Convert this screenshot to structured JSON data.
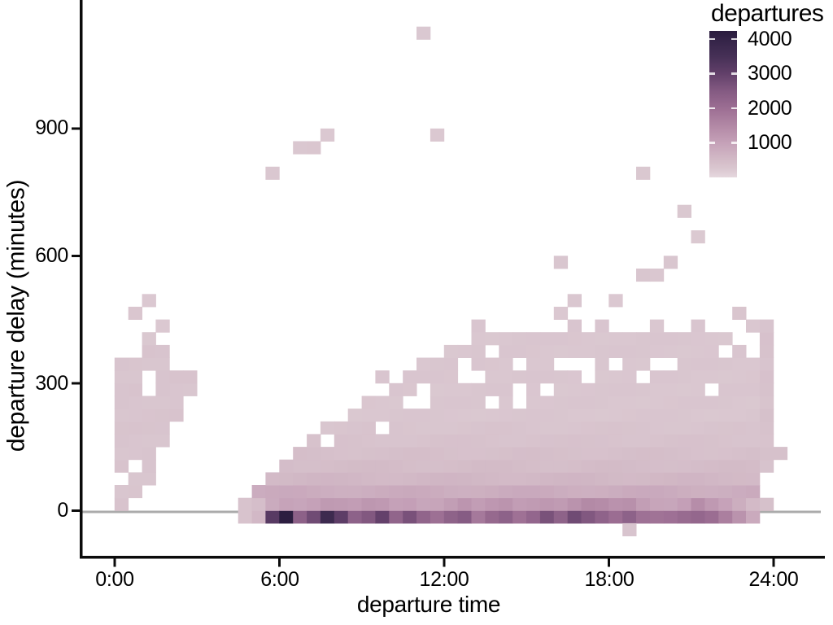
{
  "chart_data": {
    "type": "heatmap",
    "xlabel": "departure time",
    "ylabel": "departure delay (minutes)",
    "x_ticks": [
      {
        "value": 0,
        "label": "0:00"
      },
      {
        "value": 6,
        "label": "6:00"
      },
      {
        "value": 12,
        "label": "12:00"
      },
      {
        "value": 18,
        "label": "18:00"
      },
      {
        "value": 24,
        "label": "24:00"
      }
    ],
    "y_ticks": [
      {
        "value": 900,
        "label": "900"
      },
      {
        "value": 600,
        "label": "600"
      },
      {
        "value": 300,
        "label": "300"
      },
      {
        "value": 0,
        "label": "0"
      }
    ],
    "x_range_hours": [
      -1.3,
      25.9
    ],
    "y_range_minutes": [
      -110,
      1190
    ],
    "bin_width_hours": 0.5,
    "bin_height_minutes": 30,
    "grid": "off",
    "zero_line": {
      "value": 0,
      "color": "#ababab"
    },
    "legend": {
      "title": "departures",
      "position": "top-right",
      "max_value": 4235,
      "min_value": 0,
      "ticks": [
        {
          "value": 4000,
          "label": "4000"
        },
        {
          "value": 3000,
          "label": "3000"
        },
        {
          "value": 2000,
          "label": "2000"
        },
        {
          "value": 1000,
          "label": "1000"
        }
      ]
    },
    "color_scale": {
      "stops": [
        [
          0,
          "#e6d8de"
        ],
        [
          250,
          "#dac7d0"
        ],
        [
          500,
          "#d3bbc7"
        ],
        [
          1000,
          "#c5a1b8"
        ],
        [
          1500,
          "#b288a5"
        ],
        [
          2000,
          "#9c6e93"
        ],
        [
          2500,
          "#845a82"
        ],
        [
          3000,
          "#62406a"
        ],
        [
          3500,
          "#463056"
        ],
        [
          4000,
          "#332347"
        ],
        [
          4235,
          "#2a1c3e"
        ]
      ]
    },
    "columns_legend": "[hour_bin_start, top_delay_bin, count_delay_-30_0, count_delay_0_30]",
    "columns": [
      [
        4.5,
        0,
        350,
        300
      ],
      [
        5,
        30,
        600,
        400
      ],
      [
        5.5,
        60,
        3300,
        800
      ],
      [
        6,
        90,
        4250,
        1000
      ],
      [
        6.5,
        120,
        2300,
        1000
      ],
      [
        7,
        150,
        2700,
        1100
      ],
      [
        7.5,
        120,
        3600,
        1200
      ],
      [
        8,
        180,
        3000,
        1100
      ],
      [
        8.5,
        210,
        2300,
        1000
      ],
      [
        9,
        240,
        2600,
        1100
      ],
      [
        9.5,
        240,
        3100,
        1100
      ],
      [
        10,
        270,
        2300,
        1000
      ],
      [
        10.5,
        300,
        2700,
        1100
      ],
      [
        11,
        330,
        2200,
        1000
      ],
      [
        11.5,
        330,
        1900,
        1000
      ],
      [
        12,
        360,
        2200,
        1100
      ],
      [
        12.5,
        360,
        2400,
        1200
      ],
      [
        13,
        420,
        1800,
        1000
      ],
      [
        13.5,
        390,
        2200,
        1100
      ],
      [
        14,
        390,
        2400,
        1200
      ],
      [
        14.5,
        390,
        2000,
        1100
      ],
      [
        15,
        390,
        2200,
        1200
      ],
      [
        15.5,
        390,
        2600,
        1300
      ],
      [
        16,
        390,
        2200,
        1200
      ],
      [
        16.5,
        420,
        2700,
        1300
      ],
      [
        17,
        390,
        2500,
        1400
      ],
      [
        17.5,
        420,
        2300,
        1300
      ],
      [
        18,
        390,
        2100,
        1200
      ],
      [
        18.5,
        390,
        2400,
        1300
      ],
      [
        19,
        390,
        2000,
        1100
      ],
      [
        19.5,
        420,
        1900,
        1000
      ],
      [
        20,
        390,
        1900,
        1000
      ],
      [
        20.5,
        390,
        2000,
        1100
      ],
      [
        21,
        420,
        2100,
        1400
      ],
      [
        21.5,
        390,
        2000,
        1100
      ],
      [
        22,
        390,
        1700,
        900
      ],
      [
        22.5,
        360,
        1400,
        700
      ],
      [
        23,
        420,
        900,
        500
      ]
    ],
    "upper_row_counts": {
      "30": 780,
      "60": 560,
      "90": 460,
      "120": 400,
      "150": 340,
      "180": 300,
      "default": 265
    },
    "extra_tiles_legend": "[hour_bin_start, delay_bin_start, approx_count]",
    "extra_tiles": [
      [
        0,
        0,
        300
      ],
      [
        0,
        30,
        300
      ],
      [
        0,
        90,
        300
      ],
      [
        0,
        120,
        300
      ],
      [
        0,
        150,
        300
      ],
      [
        0,
        180,
        300
      ],
      [
        0,
        210,
        300
      ],
      [
        0,
        240,
        300
      ],
      [
        0,
        270,
        300
      ],
      [
        0,
        300,
        300
      ],
      [
        0,
        330,
        300
      ],
      [
        0.5,
        30,
        300
      ],
      [
        0.5,
        60,
        300
      ],
      [
        0.5,
        120,
        300
      ],
      [
        0.5,
        150,
        300
      ],
      [
        0.5,
        180,
        300
      ],
      [
        0.5,
        210,
        300
      ],
      [
        0.5,
        240,
        300
      ],
      [
        0.5,
        270,
        300
      ],
      [
        0.5,
        300,
        300
      ],
      [
        0.5,
        330,
        300
      ],
      [
        0.5,
        450,
        250
      ],
      [
        1,
        60,
        300
      ],
      [
        1,
        90,
        300
      ],
      [
        1,
        120,
        300
      ],
      [
        1,
        150,
        300
      ],
      [
        1,
        180,
        300
      ],
      [
        1,
        210,
        300
      ],
      [
        1,
        240,
        300
      ],
      [
        1,
        330,
        300
      ],
      [
        1,
        360,
        300
      ],
      [
        1,
        390,
        250
      ],
      [
        1,
        480,
        250
      ],
      [
        1.5,
        150,
        300
      ],
      [
        1.5,
        180,
        300
      ],
      [
        1.5,
        210,
        300
      ],
      [
        1.5,
        240,
        300
      ],
      [
        1.5,
        270,
        300
      ],
      [
        1.5,
        300,
        300
      ],
      [
        1.5,
        330,
        300
      ],
      [
        1.5,
        360,
        300
      ],
      [
        1.5,
        420,
        250
      ],
      [
        2,
        210,
        300
      ],
      [
        2,
        240,
        300
      ],
      [
        2,
        270,
        300
      ],
      [
        2,
        300,
        300
      ],
      [
        2.5,
        270,
        300
      ],
      [
        2.5,
        300,
        300
      ],
      [
        5.5,
        780,
        250
      ],
      [
        6.5,
        840,
        250
      ],
      [
        7,
        840,
        250
      ],
      [
        7.5,
        870,
        250
      ],
      [
        11,
        1110,
        250
      ],
      [
        11.5,
        870,
        250
      ],
      [
        19,
        780,
        250
      ],
      [
        20.5,
        690,
        250
      ],
      [
        21,
        630,
        250
      ],
      [
        16,
        570,
        250
      ],
      [
        20,
        570,
        250
      ],
      [
        19,
        540,
        250
      ],
      [
        19.5,
        540,
        250
      ],
      [
        16.5,
        480,
        250
      ],
      [
        18,
        480,
        250
      ],
      [
        16,
        450,
        250
      ],
      [
        22.5,
        450,
        280
      ],
      [
        7.5,
        180,
        300
      ],
      [
        9.5,
        300,
        300
      ],
      [
        23.5,
        0,
        400
      ],
      [
        23.5,
        90,
        350
      ],
      [
        23.5,
        120,
        350
      ],
      [
        23.5,
        150,
        350
      ],
      [
        23.5,
        180,
        350
      ],
      [
        23.5,
        210,
        350
      ],
      [
        23.5,
        240,
        350
      ],
      [
        23.5,
        270,
        350
      ],
      [
        23.5,
        300,
        350
      ],
      [
        23.5,
        330,
        350
      ],
      [
        23.5,
        360,
        350
      ],
      [
        23.5,
        390,
        350
      ],
      [
        23.5,
        420,
        350
      ],
      [
        24,
        120,
        350
      ],
      [
        18.5,
        -60,
        300
      ]
    ],
    "holes": [
      [
        9.5,
        180
      ],
      [
        10.5,
        240
      ],
      [
        11,
        240
      ],
      [
        11,
        270
      ],
      [
        12.5,
        300
      ],
      [
        12.5,
        330
      ],
      [
        13,
        300
      ],
      [
        13.5,
        240
      ],
      [
        13.5,
        360
      ],
      [
        14.5,
        240
      ],
      [
        14.5,
        270
      ],
      [
        14.5,
        330
      ],
      [
        15.5,
        270
      ],
      [
        16,
        330
      ],
      [
        16.5,
        330
      ],
      [
        17,
        300
      ],
      [
        17,
        330
      ],
      [
        18,
        330
      ],
      [
        19,
        300
      ],
      [
        19.5,
        330
      ],
      [
        20,
        330
      ],
      [
        21.5,
        270
      ],
      [
        22,
        360
      ],
      [
        23,
        360
      ],
      [
        23,
        390
      ]
    ]
  }
}
